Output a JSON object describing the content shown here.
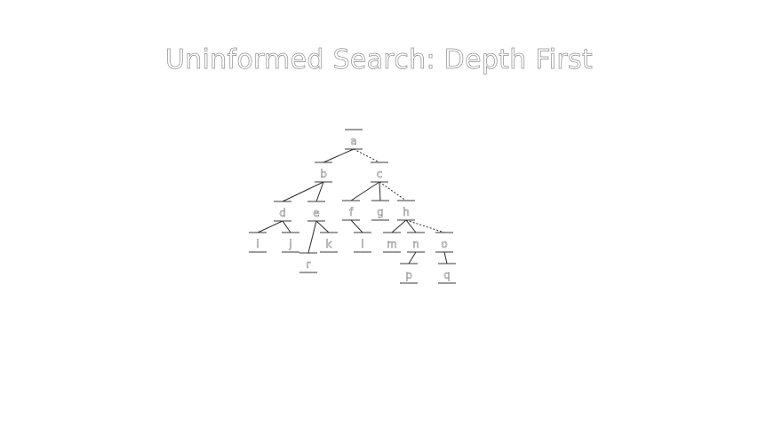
{
  "slide": {
    "title": "Uninformed Search: Depth First"
  },
  "tree": {
    "nodes": [
      {
        "id": "a",
        "label": "a"
      },
      {
        "id": "b",
        "label": "b"
      },
      {
        "id": "c",
        "label": "c"
      },
      {
        "id": "d",
        "label": "d"
      },
      {
        "id": "e",
        "label": "e"
      },
      {
        "id": "f",
        "label": "f"
      },
      {
        "id": "g",
        "label": "g"
      },
      {
        "id": "h",
        "label": "h"
      },
      {
        "id": "i",
        "label": "i"
      },
      {
        "id": "j",
        "label": "j"
      },
      {
        "id": "r",
        "label": "r"
      },
      {
        "id": "k",
        "label": "k"
      },
      {
        "id": "l",
        "label": "l"
      },
      {
        "id": "m",
        "label": "m"
      },
      {
        "id": "n",
        "label": "n"
      },
      {
        "id": "o",
        "label": "o"
      },
      {
        "id": "p",
        "label": "p"
      },
      {
        "id": "q",
        "label": "q"
      }
    ],
    "edges": [
      {
        "from": "a",
        "to": "b",
        "style": "solid"
      },
      {
        "from": "a",
        "to": "c",
        "style": "dashed"
      },
      {
        "from": "b",
        "to": "d",
        "style": "solid"
      },
      {
        "from": "b",
        "to": "e",
        "style": "solid"
      },
      {
        "from": "c",
        "to": "f",
        "style": "solid"
      },
      {
        "from": "c",
        "to": "g",
        "style": "solid"
      },
      {
        "from": "c",
        "to": "h",
        "style": "dashed"
      },
      {
        "from": "d",
        "to": "i",
        "style": "solid"
      },
      {
        "from": "d",
        "to": "j",
        "style": "solid"
      },
      {
        "from": "e",
        "to": "r",
        "style": "solid"
      },
      {
        "from": "e",
        "to": "k",
        "style": "solid"
      },
      {
        "from": "f",
        "to": "l",
        "style": "solid"
      },
      {
        "from": "h",
        "to": "m",
        "style": "solid"
      },
      {
        "from": "h",
        "to": "n",
        "style": "solid"
      },
      {
        "from": "h",
        "to": "o",
        "style": "dashed"
      },
      {
        "from": "n",
        "to": "p",
        "style": "solid"
      },
      {
        "from": "o",
        "to": "q",
        "style": "solid"
      }
    ]
  }
}
